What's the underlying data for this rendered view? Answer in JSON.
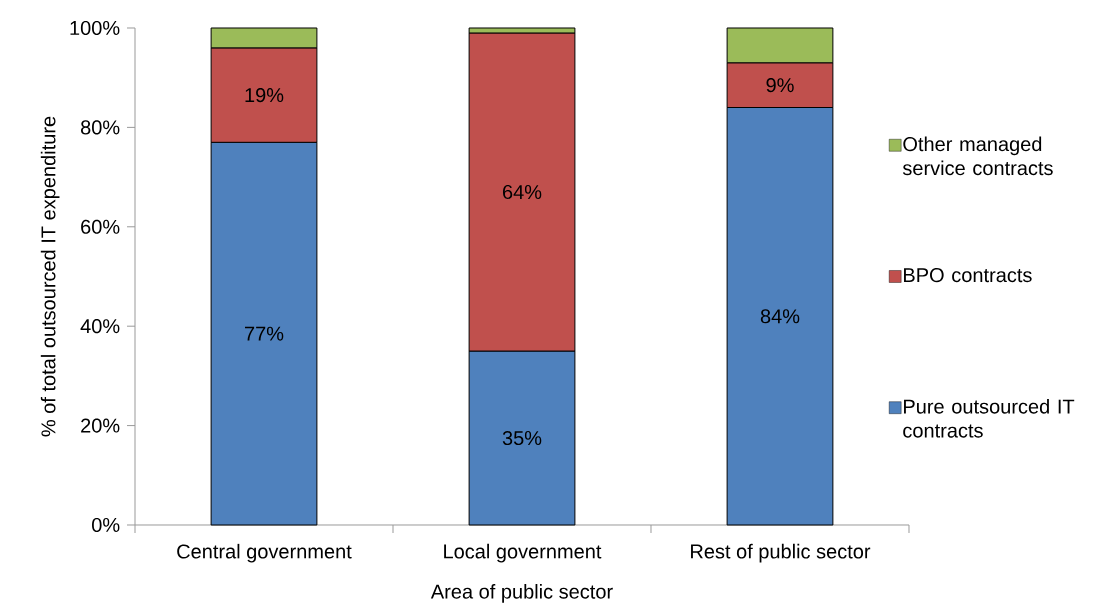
{
  "chart_data": {
    "type": "bar",
    "stacked": true,
    "xlabel": "Area of public sector",
    "ylabel": "% of total outsourced IT expenditure",
    "categories": [
      "Central government",
      "Local government",
      "Rest of public sector"
    ],
    "series": [
      {
        "name": "Pure outsourced IT contracts",
        "color": "#4f81bd",
        "values": [
          77,
          35,
          84
        ],
        "value_labels": [
          "77%",
          "35%",
          "84%"
        ]
      },
      {
        "name": "BPO contracts",
        "color": "#c0504d",
        "values": [
          19,
          64,
          9
        ],
        "value_labels": [
          "19%",
          "64%",
          "9%"
        ]
      },
      {
        "name": "Other managed service contracts",
        "color": "#9bbb59",
        "values": [
          4,
          1,
          7
        ],
        "value_labels": [
          null,
          null,
          null
        ]
      }
    ],
    "ylim": [
      0,
      100
    ],
    "yticks": [
      {
        "value": 0,
        "label": "0%"
      },
      {
        "value": 20,
        "label": "20%"
      },
      {
        "value": 40,
        "label": "40%"
      },
      {
        "value": 60,
        "label": "60%"
      },
      {
        "value": 80,
        "label": "80%"
      },
      {
        "value": 100,
        "label": "100%"
      }
    ],
    "legend": "right",
    "grid": false
  }
}
